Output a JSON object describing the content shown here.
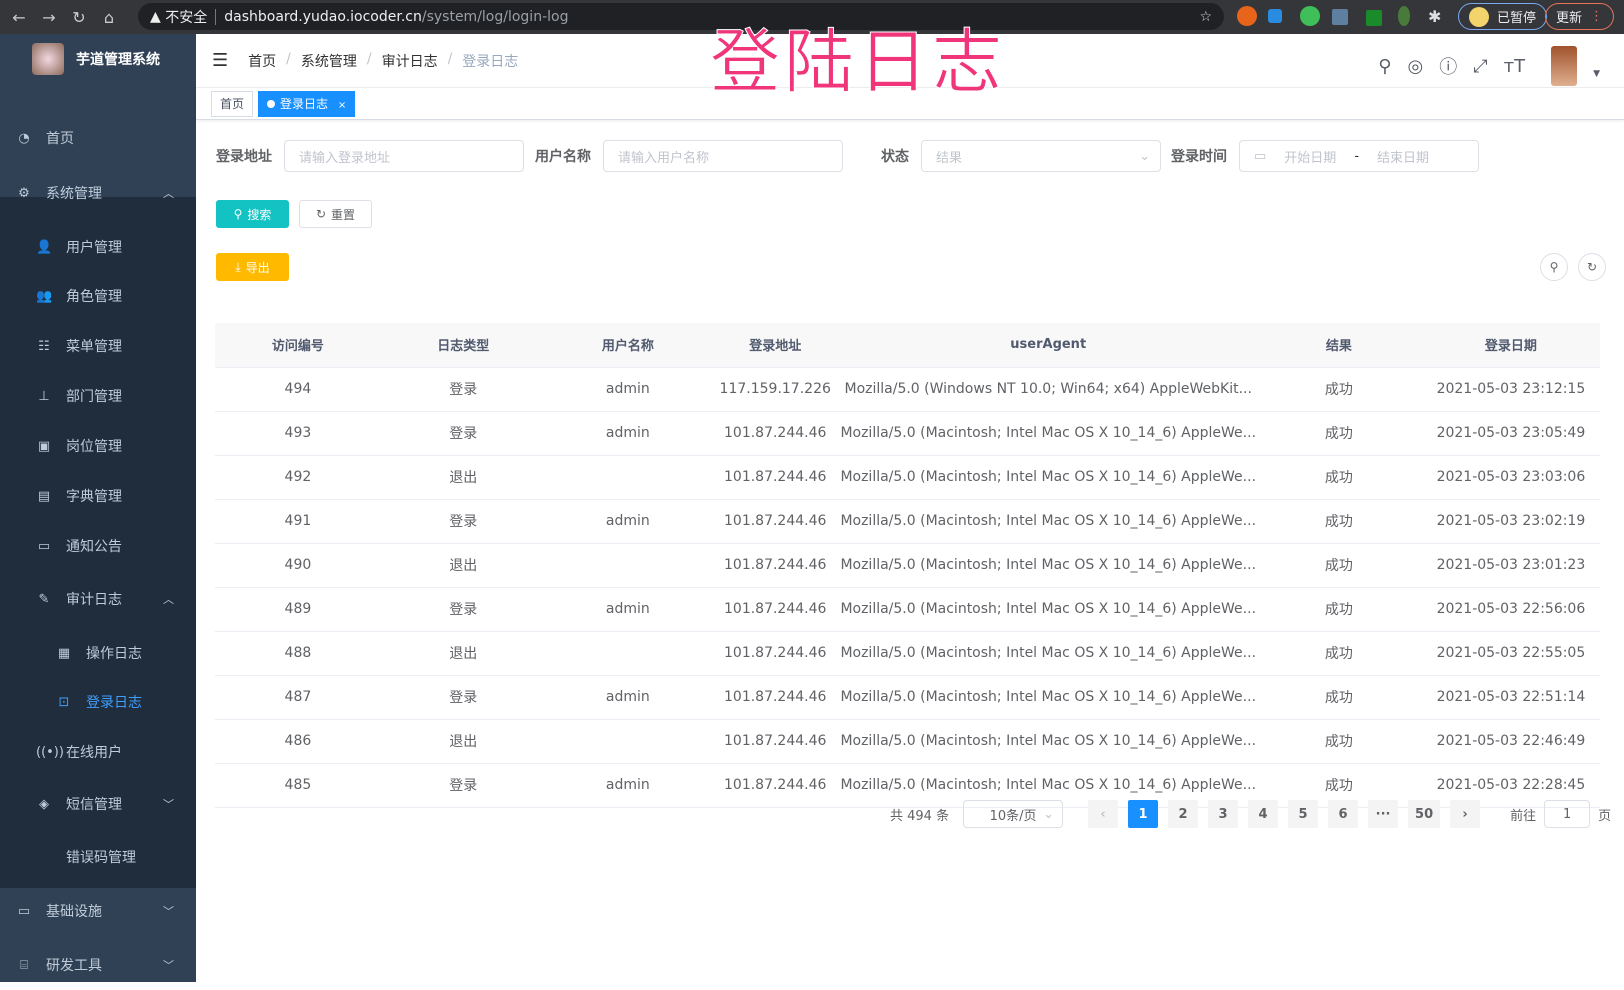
{
  "browser": {
    "not_secure": "不安全",
    "url_host": "dashboard.yudao.iocoder.cn",
    "url_path": "/system/log/login-log",
    "paused_label": "已暂停",
    "update_label": "更新"
  },
  "overlay_title": "登陆日志",
  "app": {
    "name": "芋道管理系统"
  },
  "sidebar": {
    "items": [
      {
        "label": "首页",
        "icon": "dashboard-icon",
        "level": 0
      },
      {
        "label": "系统管理",
        "icon": "gear-icon",
        "level": 0,
        "arrow": "up"
      },
      {
        "label": "用户管理",
        "icon": "user-icon",
        "level": 1
      },
      {
        "label": "角色管理",
        "icon": "peoples-icon",
        "level": 1
      },
      {
        "label": "菜单管理",
        "icon": "tree-table-icon",
        "level": 1
      },
      {
        "label": "部门管理",
        "icon": "tree-icon",
        "level": 1
      },
      {
        "label": "岗位管理",
        "icon": "post-icon",
        "level": 1
      },
      {
        "label": "字典管理",
        "icon": "dict-icon",
        "level": 1
      },
      {
        "label": "通知公告",
        "icon": "message-icon",
        "level": 1
      },
      {
        "label": "审计日志",
        "icon": "log-icon",
        "level": 1,
        "arrow": "up"
      },
      {
        "label": "操作日志",
        "icon": "form-icon",
        "level": 2
      },
      {
        "label": "登录日志",
        "icon": "logininfor-icon",
        "level": 2,
        "active": true
      },
      {
        "label": "在线用户",
        "icon": "online-icon",
        "level": 1
      },
      {
        "label": "短信管理",
        "icon": "validcode-icon",
        "level": 1,
        "arrow": "down"
      },
      {
        "label": "错误码管理",
        "icon": "code-icon",
        "level": 1
      },
      {
        "label": "基础设施",
        "icon": "monitor-icon",
        "level": 0,
        "arrow": "down"
      },
      {
        "label": "研发工具",
        "icon": "tool-icon",
        "level": 0,
        "arrow": "down"
      }
    ]
  },
  "breadcrumb": [
    "首页",
    "系统管理",
    "审计日志",
    "登录日志"
  ],
  "tags": [
    {
      "label": "首页"
    },
    {
      "label": "登录日志",
      "active": true
    }
  ],
  "filters": {
    "address_label": "登录地址",
    "address_placeholder": "请输入登录地址",
    "username_label": "用户名称",
    "username_placeholder": "请输入用户名称",
    "status_label": "状态",
    "status_placeholder": "结果",
    "time_label": "登录时间",
    "start_placeholder": "开始日期",
    "range_sep": "-",
    "end_placeholder": "结束日期"
  },
  "buttons": {
    "search": "搜索",
    "reset": "重置",
    "export": "导出"
  },
  "colors": {
    "primary": "#1890ff",
    "search": "#13c2c2",
    "export": "#ffba00",
    "sidebar": "#304156",
    "overlay": "#f0357a"
  },
  "table": {
    "columns": [
      "访问编号",
      "日志类型",
      "用户名称",
      "登录地址",
      "userAgent",
      "结果",
      "登录日期"
    ],
    "rows": [
      [
        "494",
        "登录",
        "admin",
        "117.159.17.226",
        "Mozilla/5.0 (Windows NT 10.0; Win64; x64) AppleWebKit...",
        "成功",
        "2021-05-03 23:12:15"
      ],
      [
        "493",
        "登录",
        "admin",
        "101.87.244.46",
        "Mozilla/5.0 (Macintosh; Intel Mac OS X 10_14_6) AppleWe...",
        "成功",
        "2021-05-03 23:05:49"
      ],
      [
        "492",
        "退出",
        "",
        "101.87.244.46",
        "Mozilla/5.0 (Macintosh; Intel Mac OS X 10_14_6) AppleWe...",
        "成功",
        "2021-05-03 23:03:06"
      ],
      [
        "491",
        "登录",
        "admin",
        "101.87.244.46",
        "Mozilla/5.0 (Macintosh; Intel Mac OS X 10_14_6) AppleWe...",
        "成功",
        "2021-05-03 23:02:19"
      ],
      [
        "490",
        "退出",
        "",
        "101.87.244.46",
        "Mozilla/5.0 (Macintosh; Intel Mac OS X 10_14_6) AppleWe...",
        "成功",
        "2021-05-03 23:01:23"
      ],
      [
        "489",
        "登录",
        "admin",
        "101.87.244.46",
        "Mozilla/5.0 (Macintosh; Intel Mac OS X 10_14_6) AppleWe...",
        "成功",
        "2021-05-03 22:56:06"
      ],
      [
        "488",
        "退出",
        "",
        "101.87.244.46",
        "Mozilla/5.0 (Macintosh; Intel Mac OS X 10_14_6) AppleWe...",
        "成功",
        "2021-05-03 22:55:05"
      ],
      [
        "487",
        "登录",
        "admin",
        "101.87.244.46",
        "Mozilla/5.0 (Macintosh; Intel Mac OS X 10_14_6) AppleWe...",
        "成功",
        "2021-05-03 22:51:14"
      ],
      [
        "486",
        "退出",
        "",
        "101.87.244.46",
        "Mozilla/5.0 (Macintosh; Intel Mac OS X 10_14_6) AppleWe...",
        "成功",
        "2021-05-03 22:46:49"
      ],
      [
        "485",
        "登录",
        "admin",
        "101.87.244.46",
        "Mozilla/5.0 (Macintosh; Intel Mac OS X 10_14_6) AppleWe...",
        "成功",
        "2021-05-03 22:28:45"
      ]
    ]
  },
  "pagination": {
    "total_text": "共 494 条",
    "page_size": "10条/页",
    "pages": [
      "1",
      "2",
      "3",
      "4",
      "5",
      "6",
      "···",
      "50"
    ],
    "current": "1",
    "goto_label": "前往",
    "goto_value": "1",
    "goto_suffix": "页"
  }
}
